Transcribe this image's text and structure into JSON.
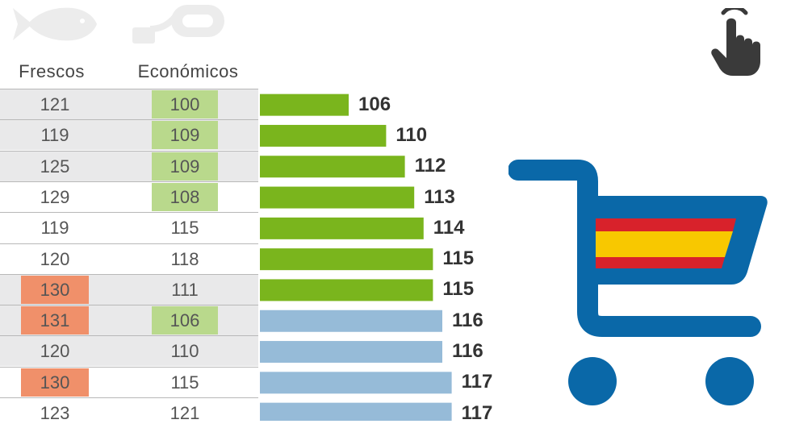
{
  "headers": {
    "frescos": "Frescos",
    "economicos": "Económicos"
  },
  "icons": {
    "fish": "fish-icon",
    "tag": "price-tag-icon",
    "hand": "hand-pointer-icon",
    "cart": "shopping-cart-icon"
  },
  "colors": {
    "bar_green": "#7ab51d",
    "bar_blue": "#96bbd8",
    "highlight_green": "#b9d98c",
    "highlight_red": "#f0906a",
    "row_shade": "#e9e9ea",
    "cart_blue": "#0a68a8",
    "flag_red": "#d8222b",
    "flag_yellow": "#f8c800",
    "icon_dark": "#3a3a3a",
    "icon_light": "#ececec"
  },
  "chart_data": {
    "type": "bar",
    "orientation": "horizontal",
    "columns": [
      "Frescos",
      "Económicos"
    ],
    "frescos": [
      121,
      119,
      125,
      129,
      119,
      120,
      130,
      131,
      120,
      130,
      123
    ],
    "economicos": [
      100,
      109,
      109,
      108,
      115,
      118,
      111,
      106,
      110,
      115,
      121
    ],
    "values": [
      106,
      110,
      112,
      113,
      114,
      115,
      115,
      116,
      116,
      117,
      117
    ],
    "bar_colors": [
      "green",
      "green",
      "green",
      "green",
      "green",
      "green",
      "green",
      "blue",
      "blue",
      "blue",
      "blue"
    ],
    "frescos_highlight": [
      "none",
      "none",
      "none",
      "none",
      "none",
      "none",
      "red",
      "red",
      "none",
      "red",
      "none"
    ],
    "economicos_highlight": [
      "green",
      "green",
      "green",
      "green",
      "none",
      "none",
      "none",
      "green",
      "none",
      "none",
      "none"
    ],
    "row_shaded": [
      true,
      true,
      true,
      false,
      false,
      false,
      true,
      true,
      true,
      false,
      false
    ]
  }
}
